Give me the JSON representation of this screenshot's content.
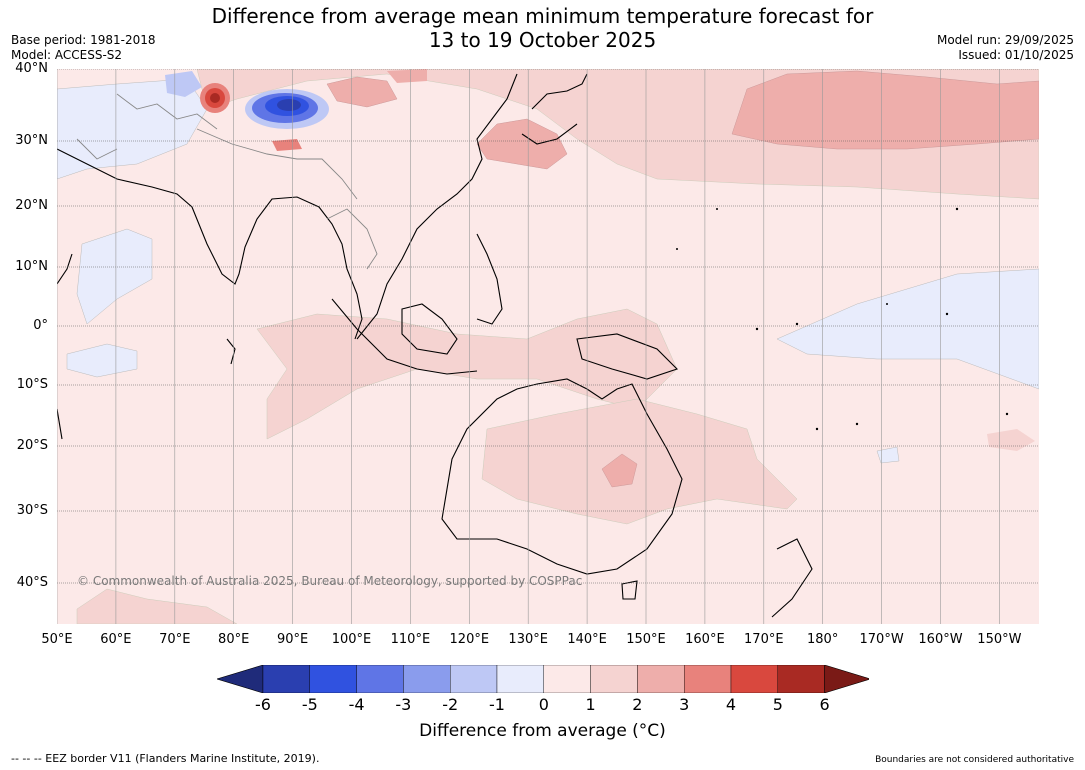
{
  "title_line1": "Difference from average mean minimum temperature forecast for",
  "title_line2": "13 to 19 October 2025",
  "base_period": "Base period: 1981-2018",
  "model": "Model: ACCESS-S2",
  "model_run": "Model run: 29/09/2025",
  "issued": "Issued: 01/10/2025",
  "copyright": "© Commonwealth of Australia 2025, Bureau of Meteorology, supported by COSPPac",
  "lat_labels": [
    "40°N",
    "30°N",
    "20°N",
    "10°N",
    "0°",
    "10°S",
    "20°S",
    "30°S",
    "40°S"
  ],
  "lon_labels": [
    "50°E",
    "60°E",
    "70°E",
    "80°E",
    "90°E",
    "100°E",
    "110°E",
    "120°E",
    "130°E",
    "140°E",
    "150°E",
    "160°E",
    "170°E",
    "180°",
    "170°W",
    "160°W",
    "150°W"
  ],
  "colorbar": {
    "ticks": [
      "-6",
      "-5",
      "-4",
      "-3",
      "-2",
      "-1",
      "0",
      "1",
      "2",
      "3",
      "4",
      "5",
      "6"
    ],
    "title": "Difference from average (°C)",
    "colors": [
      "#1f2b7a",
      "#2a3fb0",
      "#3052e0",
      "#5f75e6",
      "#8a9ced",
      "#bec8f5",
      "#e8ecfc",
      "#fce9e8",
      "#f5d3d1",
      "#eeaeab",
      "#e8827c",
      "#d9483e",
      "#a92a23",
      "#7a1a16"
    ]
  },
  "eez_note": "--  --  -- EEZ border V11 (Flanders Marine Institute, 2019).",
  "boundaries_note": "Boundaries are not considered authoritative"
}
